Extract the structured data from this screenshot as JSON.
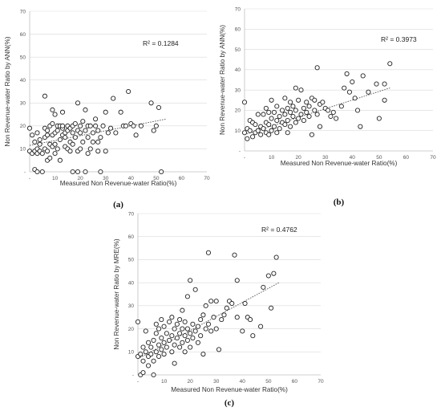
{
  "chart_data": [
    {
      "type": "scatter",
      "panel_label": "(a)",
      "xlabel": "Measured Non Revenue-water Ratio(%)",
      "ylabel": "Non Revenue-water Ratio by ANN(%)",
      "annotation": "R² = 0.1284",
      "xlim": [
        0,
        70
      ],
      "ylim": [
        0,
        70
      ],
      "x_ticks": [
        "-",
        "10",
        "20",
        "30",
        "40",
        "50",
        "60",
        "70"
      ],
      "y_ticks": [
        "-",
        "10",
        "20",
        "30",
        "40",
        "50",
        "60",
        "70"
      ],
      "grid": "horizontal",
      "trendline": {
        "style": "dotted",
        "x": [
          0,
          54
        ],
        "y": [
          11.5,
          23
        ]
      },
      "points": [
        [
          0,
          9
        ],
        [
          0,
          19
        ],
        [
          1,
          8
        ],
        [
          1,
          16
        ],
        [
          2,
          9
        ],
        [
          2,
          1
        ],
        [
          2,
          13
        ],
        [
          3,
          8
        ],
        [
          3,
          10
        ],
        [
          3,
          17
        ],
        [
          3,
          0
        ],
        [
          4,
          9
        ],
        [
          4,
          12
        ],
        [
          4,
          14
        ],
        [
          5,
          8
        ],
        [
          5,
          0
        ],
        [
          6,
          10
        ],
        [
          6,
          19
        ],
        [
          6,
          15
        ],
        [
          6,
          33
        ],
        [
          7,
          5
        ],
        [
          7,
          9
        ],
        [
          7,
          16
        ],
        [
          7,
          18
        ],
        [
          8,
          12
        ],
        [
          8,
          20
        ],
        [
          8,
          6
        ],
        [
          9,
          11
        ],
        [
          9,
          16
        ],
        [
          9,
          21
        ],
        [
          9,
          27
        ],
        [
          10,
          8
        ],
        [
          10,
          12
        ],
        [
          10,
          17
        ],
        [
          10,
          25
        ],
        [
          11,
          10
        ],
        [
          11,
          18
        ],
        [
          11,
          20
        ],
        [
          12,
          14
        ],
        [
          12,
          20
        ],
        [
          12,
          5
        ],
        [
          13,
          16
        ],
        [
          13,
          19
        ],
        [
          13,
          20
        ],
        [
          13,
          26
        ],
        [
          14,
          11
        ],
        [
          14,
          15
        ],
        [
          14,
          17
        ],
        [
          15,
          10
        ],
        [
          15,
          18
        ],
        [
          15,
          20
        ],
        [
          16,
          9
        ],
        [
          16,
          13
        ],
        [
          16,
          19
        ],
        [
          17,
          12
        ],
        [
          17,
          17
        ],
        [
          17,
          20
        ],
        [
          17,
          0
        ],
        [
          18,
          15
        ],
        [
          18,
          21
        ],
        [
          19,
          9
        ],
        [
          19,
          18
        ],
        [
          19,
          30
        ],
        [
          19,
          0
        ],
        [
          20,
          10
        ],
        [
          20,
          17
        ],
        [
          20,
          20
        ],
        [
          21,
          13
        ],
        [
          21,
          22
        ],
        [
          22,
          18
        ],
        [
          22,
          27
        ],
        [
          22,
          0
        ],
        [
          23,
          8
        ],
        [
          23,
          15
        ],
        [
          23,
          20
        ],
        [
          24,
          10
        ],
        [
          24,
          20
        ],
        [
          25,
          13
        ],
        [
          25,
          17
        ],
        [
          26,
          20
        ],
        [
          26,
          23
        ],
        [
          27,
          9
        ],
        [
          27,
          13
        ],
        [
          27,
          18
        ],
        [
          28,
          15
        ],
        [
          28,
          0
        ],
        [
          29,
          20
        ],
        [
          30,
          26
        ],
        [
          30,
          9
        ],
        [
          31,
          17
        ],
        [
          32,
          19
        ],
        [
          33,
          32
        ],
        [
          34,
          17
        ],
        [
          36,
          26
        ],
        [
          37,
          20
        ],
        [
          38,
          20
        ],
        [
          39,
          35
        ],
        [
          40,
          21
        ],
        [
          41,
          20
        ],
        [
          42,
          16
        ],
        [
          44,
          20
        ],
        [
          48,
          30
        ],
        [
          49,
          18
        ],
        [
          50,
          20
        ],
        [
          51,
          28
        ],
        [
          52,
          0
        ]
      ]
    },
    {
      "type": "scatter",
      "panel_label": "(b)",
      "xlabel": "Measured Non Revenue-water Ratio(%)",
      "ylabel": "Non Revenue-water  Ratio by ANN(%)",
      "annotation": "R² = 0.3973",
      "xlim": [
        0,
        70
      ],
      "ylim": [
        0,
        70
      ],
      "x_ticks": [
        "-",
        "10",
        "20",
        "30",
        "40",
        "50",
        "60",
        "70"
      ],
      "y_ticks": [
        "-",
        "10",
        "20",
        "30",
        "40",
        "50",
        "60",
        "70"
      ],
      "grid": "horizontal",
      "trendline": {
        "style": "dotted",
        "x": [
          0,
          54
        ],
        "y": [
          8,
          31
        ]
      },
      "points": [
        [
          0,
          9
        ],
        [
          0,
          24
        ],
        [
          1,
          11
        ],
        [
          1,
          6
        ],
        [
          2,
          10
        ],
        [
          2,
          15
        ],
        [
          3,
          7
        ],
        [
          3,
          14
        ],
        [
          4,
          9
        ],
        [
          4,
          13
        ],
        [
          5,
          10
        ],
        [
          5,
          18
        ],
        [
          6,
          8
        ],
        [
          6,
          12
        ],
        [
          7,
          11
        ],
        [
          7,
          18
        ],
        [
          8,
          9
        ],
        [
          8,
          14
        ],
        [
          8,
          21
        ],
        [
          9,
          8
        ],
        [
          9,
          13
        ],
        [
          9,
          19
        ],
        [
          10,
          10
        ],
        [
          10,
          16
        ],
        [
          10,
          25
        ],
        [
          11,
          12
        ],
        [
          11,
          19
        ],
        [
          12,
          9
        ],
        [
          12,
          15
        ],
        [
          12,
          22
        ],
        [
          13,
          11
        ],
        [
          13,
          17
        ],
        [
          14,
          14
        ],
        [
          14,
          20
        ],
        [
          15,
          13
        ],
        [
          15,
          18
        ],
        [
          15,
          26
        ],
        [
          16,
          9
        ],
        [
          16,
          15
        ],
        [
          16,
          21
        ],
        [
          17,
          12
        ],
        [
          17,
          19
        ],
        [
          17,
          24
        ],
        [
          18,
          17
        ],
        [
          18,
          22
        ],
        [
          19,
          14
        ],
        [
          19,
          20
        ],
        [
          19,
          31
        ],
        [
          20,
          16
        ],
        [
          20,
          25
        ],
        [
          21,
          18
        ],
        [
          21,
          30
        ],
        [
          22,
          15
        ],
        [
          22,
          21
        ],
        [
          23,
          19
        ],
        [
          23,
          24
        ],
        [
          24,
          17
        ],
        [
          24,
          22
        ],
        [
          25,
          8
        ],
        [
          25,
          26
        ],
        [
          26,
          20
        ],
        [
          26,
          25
        ],
        [
          27,
          41
        ],
        [
          27,
          18
        ],
        [
          28,
          23
        ],
        [
          28,
          12
        ],
        [
          29,
          24
        ],
        [
          30,
          21
        ],
        [
          31,
          20
        ],
        [
          32,
          17
        ],
        [
          33,
          19
        ],
        [
          34,
          16
        ],
        [
          36,
          22
        ],
        [
          37,
          31
        ],
        [
          38,
          38
        ],
        [
          39,
          29
        ],
        [
          40,
          34
        ],
        [
          41,
          26
        ],
        [
          42,
          20
        ],
        [
          43,
          12
        ],
        [
          44,
          37
        ],
        [
          46,
          29
        ],
        [
          49,
          33
        ],
        [
          50,
          16
        ],
        [
          52,
          25
        ],
        [
          52,
          33
        ],
        [
          54,
          43
        ]
      ]
    },
    {
      "type": "scatter",
      "panel_label": "(c)",
      "xlabel": "Measured Non Revenue-water Ratio(%)",
      "ylabel": "Non Revenue-water  Ratio by MRE(%)",
      "annotation": "R² = 0.4762",
      "xlim": [
        0,
        70
      ],
      "ylim": [
        0,
        70
      ],
      "x_ticks": [
        "-",
        "10",
        "20",
        "30",
        "40",
        "50",
        "60",
        "70"
      ],
      "y_ticks": [
        "-",
        "10",
        "20",
        "30",
        "40",
        "50",
        "60",
        "70"
      ],
      "grid": "horizontal",
      "trendline": {
        "style": "dotted",
        "x": [
          0,
          54
        ],
        "y": [
          7,
          40
        ]
      },
      "points": [
        [
          0,
          8
        ],
        [
          0,
          23
        ],
        [
          1,
          0
        ],
        [
          1,
          9
        ],
        [
          2,
          1
        ],
        [
          2,
          6
        ],
        [
          2,
          12
        ],
        [
          3,
          10
        ],
        [
          3,
          19
        ],
        [
          4,
          4
        ],
        [
          4,
          8
        ],
        [
          4,
          14
        ],
        [
          5,
          9
        ],
        [
          5,
          12
        ],
        [
          6,
          6
        ],
        [
          6,
          15
        ],
        [
          6,
          0
        ],
        [
          7,
          10
        ],
        [
          7,
          18
        ],
        [
          7,
          22
        ],
        [
          8,
          8
        ],
        [
          8,
          13
        ],
        [
          8,
          20
        ],
        [
          9,
          11
        ],
        [
          9,
          16
        ],
        [
          9,
          24
        ],
        [
          10,
          9
        ],
        [
          10,
          14
        ],
        [
          10,
          21
        ],
        [
          11,
          12
        ],
        [
          11,
          18
        ],
        [
          12,
          15
        ],
        [
          12,
          23
        ],
        [
          13,
          10
        ],
        [
          13,
          17
        ],
        [
          13,
          25
        ],
        [
          14,
          5
        ],
        [
          14,
          13
        ],
        [
          14,
          20
        ],
        [
          15,
          16
        ],
        [
          15,
          22
        ],
        [
          16,
          12
        ],
        [
          16,
          18
        ],
        [
          16,
          24
        ],
        [
          17,
          14
        ],
        [
          17,
          20
        ],
        [
          17,
          28
        ],
        [
          18,
          10
        ],
        [
          18,
          17
        ],
        [
          18,
          23
        ],
        [
          19,
          15
        ],
        [
          19,
          20
        ],
        [
          19,
          34
        ],
        [
          20,
          12
        ],
        [
          20,
          18
        ],
        [
          20,
          41
        ],
        [
          21,
          16
        ],
        [
          21,
          22
        ],
        [
          22,
          19
        ],
        [
          22,
          37
        ],
        [
          23,
          14
        ],
        [
          23,
          21
        ],
        [
          24,
          17
        ],
        [
          24,
          24
        ],
        [
          25,
          9
        ],
        [
          25,
          26
        ],
        [
          26,
          20
        ],
        [
          26,
          30
        ],
        [
          27,
          53
        ],
        [
          27,
          22
        ],
        [
          28,
          19
        ],
        [
          28,
          32
        ],
        [
          29,
          25
        ],
        [
          30,
          20
        ],
        [
          30,
          32
        ],
        [
          31,
          11
        ],
        [
          32,
          24
        ],
        [
          33,
          26
        ],
        [
          34,
          29
        ],
        [
          35,
          32
        ],
        [
          36,
          31
        ],
        [
          37,
          52
        ],
        [
          38,
          25
        ],
        [
          38,
          41
        ],
        [
          40,
          19
        ],
        [
          41,
          31
        ],
        [
          42,
          25
        ],
        [
          43,
          24
        ],
        [
          44,
          17
        ],
        [
          47,
          21
        ],
        [
          48,
          38
        ],
        [
          50,
          43
        ],
        [
          51,
          29
        ],
        [
          52,
          44
        ],
        [
          53,
          51
        ]
      ]
    }
  ]
}
